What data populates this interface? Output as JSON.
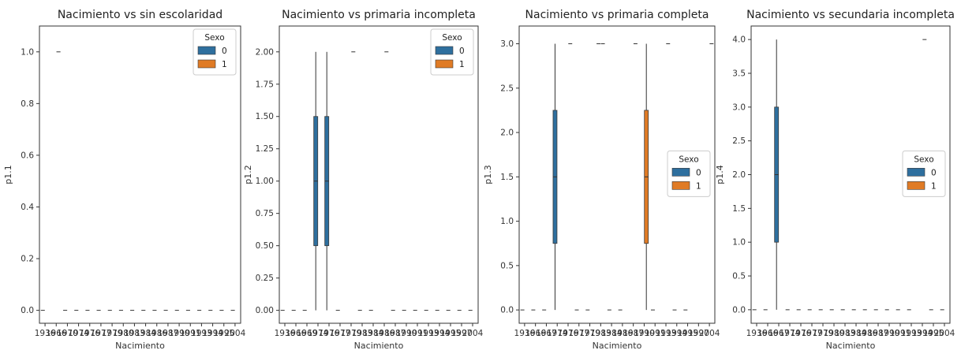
{
  "colors": {
    "sex0": "#2e6f9e",
    "sex1": "#e07b25",
    "axis": "#333333",
    "median": "#333333"
  },
  "chart_data": [
    {
      "type": "box",
      "title": "Nacimiento vs sin escolaridad",
      "xlabel": "Nacimiento",
      "ylabel": "p1.1",
      "ylim": [
        -0.05,
        1.1
      ],
      "yticks": [
        0.0,
        0.2,
        0.4,
        0.6,
        0.8,
        1.0
      ],
      "ytick_labels": [
        "0.0",
        "0.2",
        "0.4",
        "0.6",
        "0.8",
        "1.0"
      ],
      "categories": [
        "1936",
        "1966",
        "1970",
        "1974",
        "1976",
        "1977",
        "1979",
        "1980",
        "1983",
        "1984",
        "1986",
        "1987",
        "1990",
        "1991",
        "1993",
        "1994",
        "1995",
        "2004"
      ],
      "xtick_labels": [
        "1936",
        "1966",
        "1970",
        "1974",
        "1976",
        "1977",
        "1979",
        "1980",
        "1983",
        "1984",
        "1986",
        "1987",
        "1990",
        "1991",
        "1993",
        "1994",
        "1995",
        "2004"
      ],
      "legend": {
        "title": "Sexo",
        "entries": [
          "0",
          "1"
        ],
        "position": "top-right"
      },
      "boxes": [],
      "flat": [
        {
          "x": 0,
          "sex": 0,
          "y": 0
        },
        {
          "x": 1,
          "sex": 1,
          "y": 1.0
        },
        {
          "x": 2,
          "sex": 0,
          "y": 0
        },
        {
          "x": 3,
          "sex": 0,
          "y": 0
        },
        {
          "x": 4,
          "sex": 0,
          "y": 0
        },
        {
          "x": 5,
          "sex": 0,
          "y": 0
        },
        {
          "x": 6,
          "sex": 0,
          "y": 0
        },
        {
          "x": 7,
          "sex": 0,
          "y": 0
        },
        {
          "x": 8,
          "sex": 0,
          "y": 0
        },
        {
          "x": 9,
          "sex": 0,
          "y": 0
        },
        {
          "x": 10,
          "sex": 0,
          "y": 0
        },
        {
          "x": 11,
          "sex": 0,
          "y": 0
        },
        {
          "x": 12,
          "sex": 0,
          "y": 0
        },
        {
          "x": 13,
          "sex": 0,
          "y": 0
        },
        {
          "x": 14,
          "sex": 0,
          "y": 0
        },
        {
          "x": 15,
          "sex": 0,
          "y": 0
        },
        {
          "x": 16,
          "sex": 0,
          "y": 0
        },
        {
          "x": 17,
          "sex": 0,
          "y": 0
        }
      ]
    },
    {
      "type": "box",
      "title": "Nacimiento vs primaria incompleta",
      "xlabel": "Nacimiento",
      "ylabel": "p1.2",
      "ylim": [
        -0.1,
        2.2
      ],
      "yticks": [
        0.0,
        0.25,
        0.5,
        0.75,
        1.0,
        1.25,
        1.5,
        1.75,
        2.0
      ],
      "ytick_labels": [
        "0.00",
        "0.25",
        "0.50",
        "0.75",
        "1.00",
        "1.25",
        "1.50",
        "1.75",
        "2.00"
      ],
      "categories": [
        "1936",
        "1966",
        "1969",
        "1974",
        "1976",
        "1977",
        "1979",
        "1983",
        "1984",
        "1986",
        "1987",
        "1990",
        "1991",
        "1993",
        "1994",
        "1995",
        "1997",
        "2004"
      ],
      "xtick_labels": [
        "1936",
        "1966",
        "1969",
        "1974",
        "1976",
        "1977",
        "1979",
        "1983",
        "1984",
        "1986",
        "1987",
        "1990",
        "1991",
        "1993",
        "1994",
        "1995",
        "1997",
        "2004"
      ],
      "legend": {
        "title": "Sexo",
        "entries": [
          "0",
          "1"
        ],
        "position": "top-right"
      },
      "boxes": [
        {
          "x": 3,
          "sex": 0,
          "whislo": 0,
          "q1": 0.5,
          "med": 1.0,
          "q3": 1.5,
          "whishi": 2.0
        },
        {
          "x": 4,
          "sex": 0,
          "whislo": 0,
          "q1": 0.5,
          "med": 1.0,
          "q3": 1.5,
          "whishi": 2.0
        }
      ],
      "flat": [
        {
          "x": 0,
          "sex": 0,
          "y": 0
        },
        {
          "x": 1,
          "sex": 0,
          "y": 0
        },
        {
          "x": 2,
          "sex": 0,
          "y": 0
        },
        {
          "x": 5,
          "sex": 0,
          "y": 0
        },
        {
          "x": 6,
          "sex": 1,
          "y": 2.0
        },
        {
          "x": 7,
          "sex": 0,
          "y": 0
        },
        {
          "x": 8,
          "sex": 0,
          "y": 0
        },
        {
          "x": 9,
          "sex": 1,
          "y": 2.0
        },
        {
          "x": 10,
          "sex": 0,
          "y": 0
        },
        {
          "x": 11,
          "sex": 0,
          "y": 0
        },
        {
          "x": 12,
          "sex": 0,
          "y": 0
        },
        {
          "x": 13,
          "sex": 0,
          "y": 0
        },
        {
          "x": 14,
          "sex": 0,
          "y": 0
        },
        {
          "x": 15,
          "sex": 0,
          "y": 0
        },
        {
          "x": 16,
          "sex": 0,
          "y": 0
        },
        {
          "x": 17,
          "sex": 0,
          "y": 0
        }
      ]
    },
    {
      "type": "box",
      "title": "Nacimiento vs primaria completa",
      "xlabel": "Nacimiento",
      "ylabel": "p1.3",
      "ylim": [
        -0.15,
        3.2
      ],
      "yticks": [
        0.0,
        0.5,
        1.0,
        1.5,
        2.0,
        2.5,
        3.0
      ],
      "ytick_labels": [
        "0.0",
        "0.5",
        "1.0",
        "1.5",
        "2.0",
        "2.5",
        "3.0"
      ],
      "categories": [
        "1936",
        "1966",
        "1967",
        "1974",
        "1976",
        "1977",
        "1979",
        "1983",
        "1984",
        "1986",
        "1987",
        "1990",
        "1991",
        "1993",
        "1994",
        "1995",
        "1997",
        "2004"
      ],
      "xtick_labels": [
        "1936",
        "1966",
        "1967",
        "1974",
        "1976",
        "1977",
        "1979",
        "1983",
        "1984",
        "1986",
        "1987",
        "1990",
        "1991",
        "1993",
        "1994",
        "1995",
        "1997",
        "2004"
      ],
      "legend": {
        "title": "Sexo",
        "entries": [
          "0",
          "1"
        ],
        "position": "center-right"
      },
      "boxes": [
        {
          "x": 3,
          "sex": 0,
          "whislo": 0,
          "q1": 0.75,
          "med": 1.5,
          "q3": 2.25,
          "whishi": 3.0
        },
        {
          "x": 11,
          "sex": 1,
          "whislo": 0,
          "q1": 0.75,
          "med": 1.5,
          "q3": 2.25,
          "whishi": 3.0
        }
      ],
      "flat": [
        {
          "x": 0,
          "sex": 0,
          "y": 0
        },
        {
          "x": 1,
          "sex": 0,
          "y": 0
        },
        {
          "x": 2,
          "sex": 0,
          "y": 0
        },
        {
          "x": 4,
          "sex": 1,
          "y": 3.0
        },
        {
          "x": 5,
          "sex": 0,
          "y": 0
        },
        {
          "x": 6,
          "sex": 0,
          "y": 0
        },
        {
          "x": 7,
          "sex": 1,
          "y": 3.0
        },
        {
          "x": 7,
          "sex": 0,
          "y": 3.0
        },
        {
          "x": 8,
          "sex": 0,
          "y": 0
        },
        {
          "x": 9,
          "sex": 0,
          "y": 0
        },
        {
          "x": 10,
          "sex": 1,
          "y": 3.0
        },
        {
          "x": 12,
          "sex": 0,
          "y": 0
        },
        {
          "x": 13,
          "sex": 1,
          "y": 3.0
        },
        {
          "x": 14,
          "sex": 0,
          "y": 0
        },
        {
          "x": 15,
          "sex": 0,
          "y": 0
        },
        {
          "x": 17,
          "sex": 1,
          "y": 3.0
        }
      ]
    },
    {
      "type": "box",
      "title": "Nacimiento vs secundaria incompleta",
      "xlabel": "Nacimiento",
      "ylabel": "p1.4",
      "ylim": [
        -0.2,
        4.2
      ],
      "yticks": [
        0.0,
        0.5,
        1.0,
        1.5,
        2.0,
        2.5,
        3.0,
        3.5,
        4.0
      ],
      "ytick_labels": [
        "0.0",
        "0.5",
        "1.0",
        "1.5",
        "2.0",
        "2.5",
        "3.0",
        "3.5",
        "4.0"
      ],
      "categories": [
        "1936",
        "1966",
        "1967",
        "1974",
        "1976",
        "1977",
        "1979",
        "1980",
        "1983",
        "1984",
        "1986",
        "1987",
        "1990",
        "1991",
        "1993",
        "1994",
        "1995",
        "2004"
      ],
      "xtick_labels": [
        "1936",
        "1966",
        "1967",
        "1974",
        "1976",
        "1977",
        "1979",
        "1980",
        "1983",
        "1984",
        "1986",
        "1987",
        "1990",
        "1991",
        "1993",
        "1994",
        "1995",
        "2004"
      ],
      "legend": {
        "title": "Sexo",
        "entries": [
          "0",
          "1"
        ],
        "position": "center-right"
      },
      "boxes": [
        {
          "x": 2,
          "sex": 0,
          "whislo": 0,
          "q1": 1.0,
          "med": 2.0,
          "q3": 3.0,
          "whishi": 4.0
        }
      ],
      "flat": [
        {
          "x": 0,
          "sex": 0,
          "y": 0
        },
        {
          "x": 1,
          "sex": 0,
          "y": 0
        },
        {
          "x": 3,
          "sex": 0,
          "y": 0
        },
        {
          "x": 4,
          "sex": 0,
          "y": 0
        },
        {
          "x": 5,
          "sex": 0,
          "y": 0
        },
        {
          "x": 6,
          "sex": 0,
          "y": 0
        },
        {
          "x": 7,
          "sex": 0,
          "y": 0
        },
        {
          "x": 8,
          "sex": 0,
          "y": 0
        },
        {
          "x": 9,
          "sex": 0,
          "y": 0
        },
        {
          "x": 10,
          "sex": 0,
          "y": 0
        },
        {
          "x": 11,
          "sex": 0,
          "y": 0
        },
        {
          "x": 12,
          "sex": 0,
          "y": 0
        },
        {
          "x": 13,
          "sex": 0,
          "y": 0
        },
        {
          "x": 14,
          "sex": 0,
          "y": 0
        },
        {
          "x": 15,
          "sex": 1,
          "y": 4.0
        },
        {
          "x": 16,
          "sex": 0,
          "y": 0
        },
        {
          "x": 17,
          "sex": 0,
          "y": 0
        }
      ]
    }
  ]
}
